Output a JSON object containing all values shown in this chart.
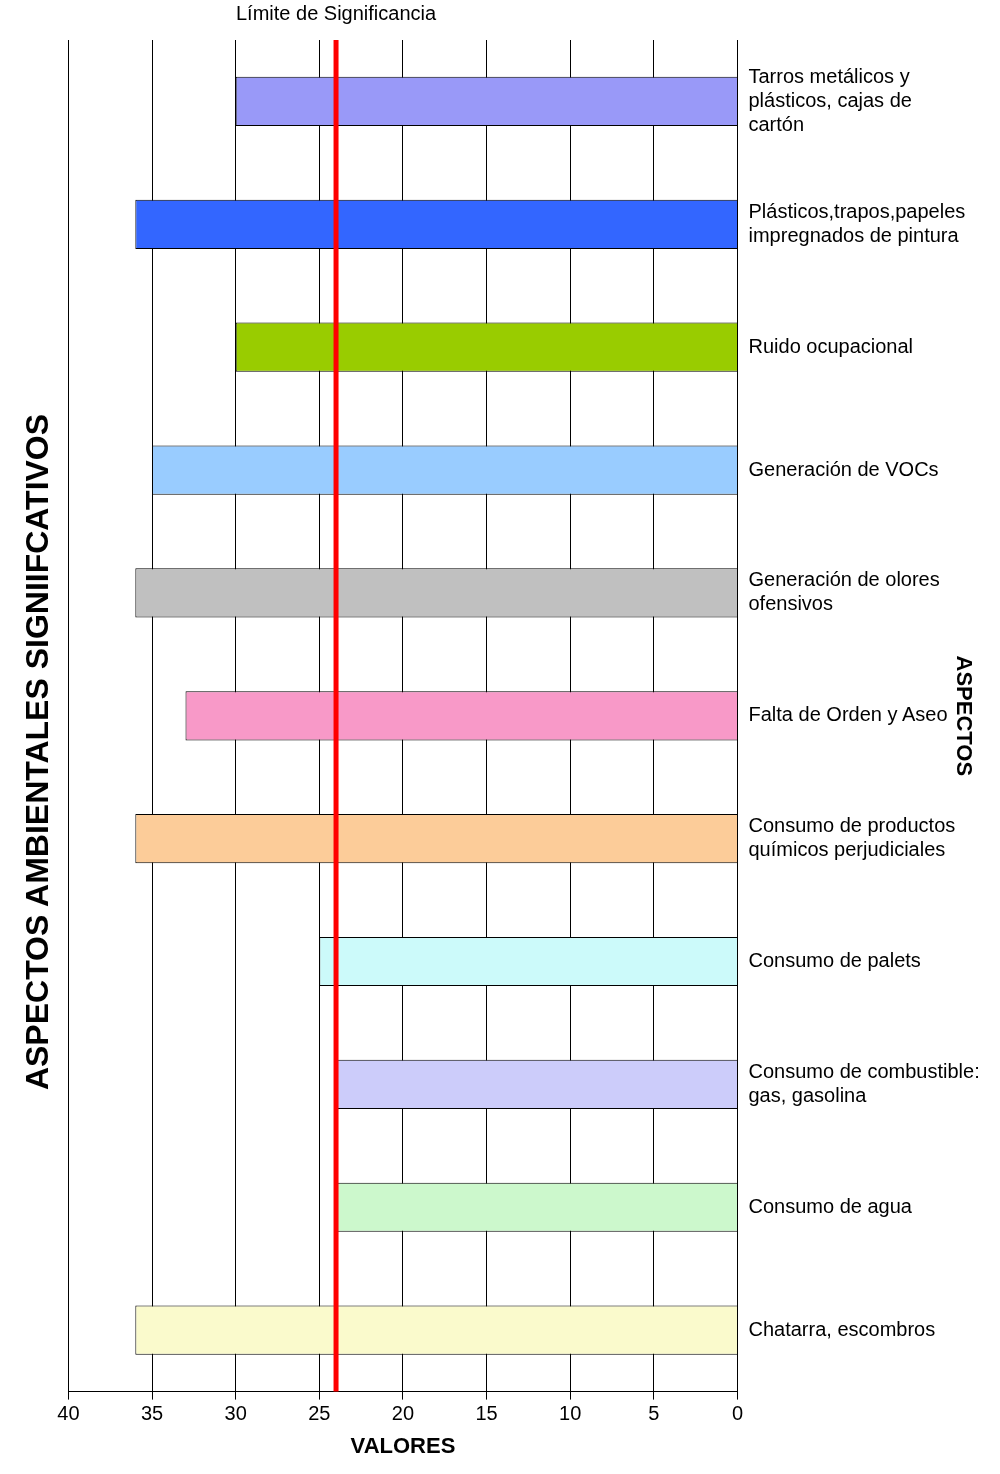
{
  "chart_data": {
    "type": "bar",
    "orientation": "horizontal",
    "title": "ASPECTOS AMBIENTALES SIGNIIFCATIVOS",
    "xlabel": "VALORES",
    "ylabel": "ASPECTOS",
    "categories": [
      "Tarros metálicos y plásticos, cajas de cartón",
      "Plásticos,trapos,papeles impregnados de pintura",
      "Ruido ocupacional",
      "Generación de VOCs",
      "Generación de olores ofensivos",
      "Falta de Orden y Aseo",
      "Consumo de productos químicos perjudiciales",
      "Consumo de palets",
      "Consumo de combustible: gas, gasolina",
      "Consumo de agua",
      "Chatarra, escombros"
    ],
    "values": [
      30,
      36,
      30,
      35,
      36,
      33,
      36,
      25,
      24,
      24,
      36
    ],
    "colors": [
      "#9999f8",
      "#3366ff",
      "#99cc00",
      "#99ccff",
      "#c0c0c0",
      "#f899c8",
      "#fccc99",
      "#ccfafa",
      "#ccccfa",
      "#ccf8cc",
      "#fafacc"
    ],
    "xlim": [
      40,
      0
    ],
    "xticks": [
      40,
      35,
      30,
      25,
      20,
      15,
      10,
      5,
      0
    ],
    "grid": "x",
    "ref_lines": [
      {
        "axis": "x",
        "value": 24,
        "label": "Límite de Significancia",
        "color": "#ff0000"
      }
    ]
  }
}
